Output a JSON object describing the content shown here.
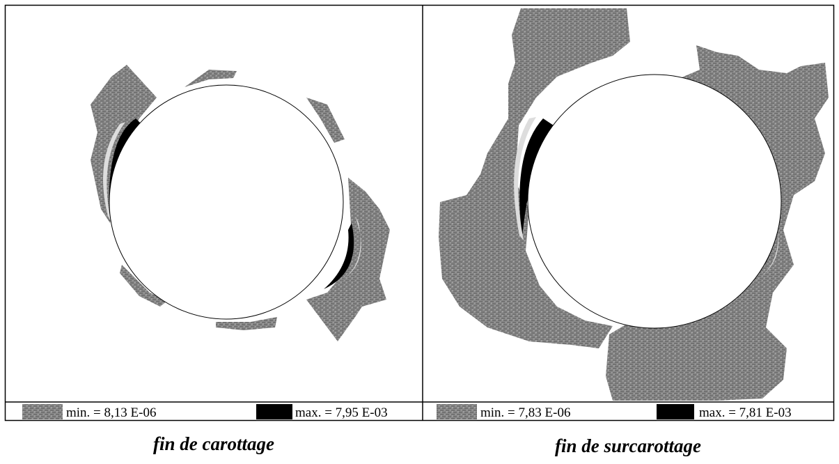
{
  "panels": [
    {
      "legend": {
        "min": "min. = 8,13 E-06",
        "max": "max. = 7,95 E-03"
      },
      "caption": "fin de carottage"
    },
    {
      "legend": {
        "min": "min. = 7,83 E-06",
        "max": "max. = 7,81 E-03"
      },
      "caption": "fin de surcarottage"
    }
  ]
}
